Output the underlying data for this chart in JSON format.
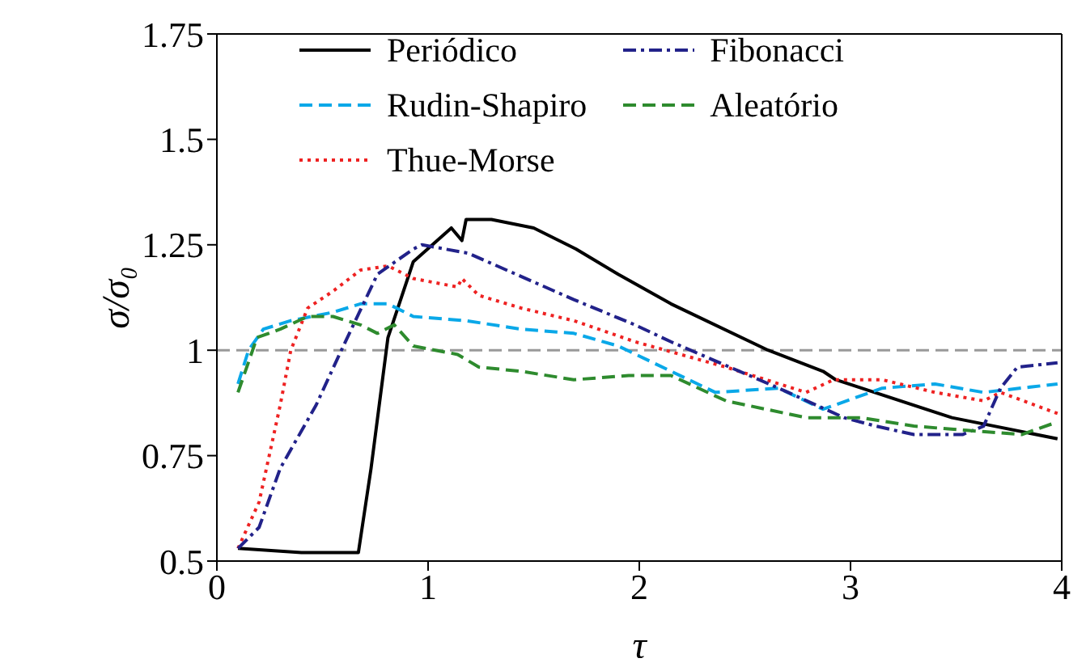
{
  "chart_data": {
    "type": "line",
    "xlabel": "τ",
    "ylabel": "σ/σ₀",
    "xlim": [
      0,
      4
    ],
    "xticks": [
      0,
      1,
      2,
      3,
      4
    ],
    "ylim": [
      0.5,
      1.75
    ],
    "yticks": [
      0.5,
      0.75,
      1,
      1.25,
      1.5,
      1.75
    ],
    "grid": false,
    "legend": "top",
    "marker": "none",
    "ref_lines": [
      {
        "axis": "y",
        "value": 1,
        "color": "#999999",
        "line_style": "dashed"
      }
    ],
    "series": [
      {
        "name": "Periódico",
        "color": "#000000",
        "line_style": "solid",
        "x": [
          0.1,
          0.4,
          0.67,
          0.73,
          0.81,
          0.93,
          1.11,
          1.16,
          1.18,
          1.3,
          1.5,
          1.7,
          1.9,
          2.15,
          2.61,
          2.87,
          2.93,
          3.48,
          3.98
        ],
        "values": [
          0.53,
          0.52,
          0.52,
          0.72,
          1.03,
          1.21,
          1.29,
          1.26,
          1.31,
          1.31,
          1.29,
          1.24,
          1.18,
          1.11,
          1.0,
          0.95,
          0.93,
          0.84,
          0.79
        ]
      },
      {
        "name": "Rudin-Shapiro",
        "color": "#0aa8e8",
        "line_style": "dashed",
        "x": [
          0.1,
          0.15,
          0.22,
          0.35,
          0.55,
          0.68,
          0.81,
          0.93,
          1.18,
          1.44,
          1.69,
          1.9,
          2.36,
          2.66,
          2.87,
          3.15,
          3.4,
          3.63,
          3.98
        ],
        "values": [
          0.92,
          1.0,
          1.05,
          1.07,
          1.09,
          1.11,
          1.11,
          1.08,
          1.07,
          1.05,
          1.04,
          1.01,
          0.9,
          0.91,
          0.86,
          0.91,
          0.92,
          0.9,
          0.92
        ]
      },
      {
        "name": "Thue-Morse",
        "color": "#ee2222",
        "line_style": "dotted",
        "x": [
          0.1,
          0.2,
          0.3,
          0.35,
          0.43,
          0.55,
          0.68,
          0.81,
          0.93,
          1.14,
          1.16,
          1.24,
          1.44,
          1.69,
          1.98,
          2.41,
          2.79,
          2.92,
          3.15,
          3.4,
          3.63,
          3.71,
          3.98
        ],
        "values": [
          0.53,
          0.64,
          0.87,
          1.0,
          1.1,
          1.14,
          1.19,
          1.2,
          1.17,
          1.15,
          1.17,
          1.13,
          1.1,
          1.07,
          1.02,
          0.96,
          0.9,
          0.93,
          0.93,
          0.9,
          0.88,
          0.9,
          0.85
        ]
      },
      {
        "name": "Fibonacci",
        "color": "#22228a",
        "line_style": "dashdot",
        "x": [
          0.1,
          0.2,
          0.3,
          0.47,
          0.58,
          0.76,
          0.93,
          0.97,
          1.19,
          1.69,
          1.98,
          2.15,
          2.66,
          2.97,
          3.12,
          3.3,
          3.53,
          3.63,
          3.71,
          3.79,
          3.98
        ],
        "values": [
          0.53,
          0.58,
          0.72,
          0.87,
          0.99,
          1.18,
          1.24,
          1.25,
          1.23,
          1.12,
          1.06,
          1.02,
          0.91,
          0.84,
          0.82,
          0.8,
          0.8,
          0.82,
          0.91,
          0.96,
          0.97
        ]
      },
      {
        "name": "Aleatório",
        "color": "#2e8b2e",
        "line_style": "dashed",
        "x": [
          0.1,
          0.19,
          0.3,
          0.43,
          0.55,
          0.68,
          0.76,
          0.84,
          0.93,
          1.14,
          1.24,
          1.44,
          1.69,
          1.95,
          2.15,
          2.41,
          2.79,
          3.05,
          3.3,
          3.55,
          3.81,
          3.98
        ],
        "values": [
          0.9,
          1.03,
          1.05,
          1.08,
          1.08,
          1.06,
          1.04,
          1.06,
          1.01,
          0.99,
          0.96,
          0.95,
          0.93,
          0.94,
          0.94,
          0.88,
          0.84,
          0.84,
          0.82,
          0.81,
          0.8,
          0.83
        ]
      }
    ]
  }
}
